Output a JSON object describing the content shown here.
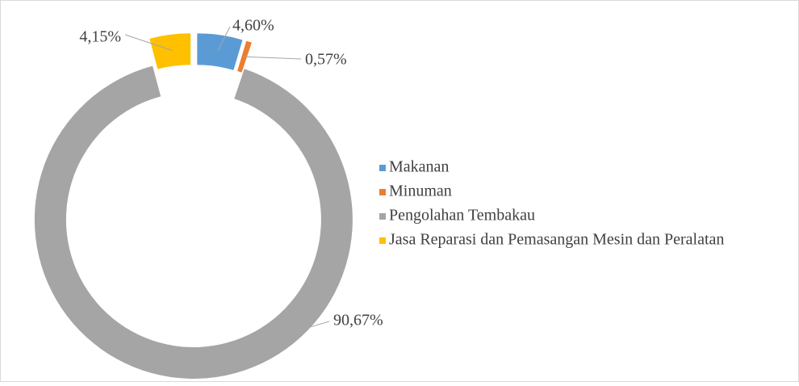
{
  "chart_data": {
    "type": "donut",
    "categories": [
      "Makanan",
      "Minuman",
      "Pengolahan Tembakau",
      "Jasa Reparasi dan Pemasangan Mesin dan Peralatan"
    ],
    "values": [
      4.6,
      0.57,
      90.67,
      4.15
    ],
    "value_labels": [
      "4,60%",
      "0,57%",
      "90,67%",
      "4,15%"
    ],
    "colors": [
      "#5b9bd5",
      "#ed7d31",
      "#a5a5a5",
      "#ffc000"
    ],
    "legend": "right"
  }
}
